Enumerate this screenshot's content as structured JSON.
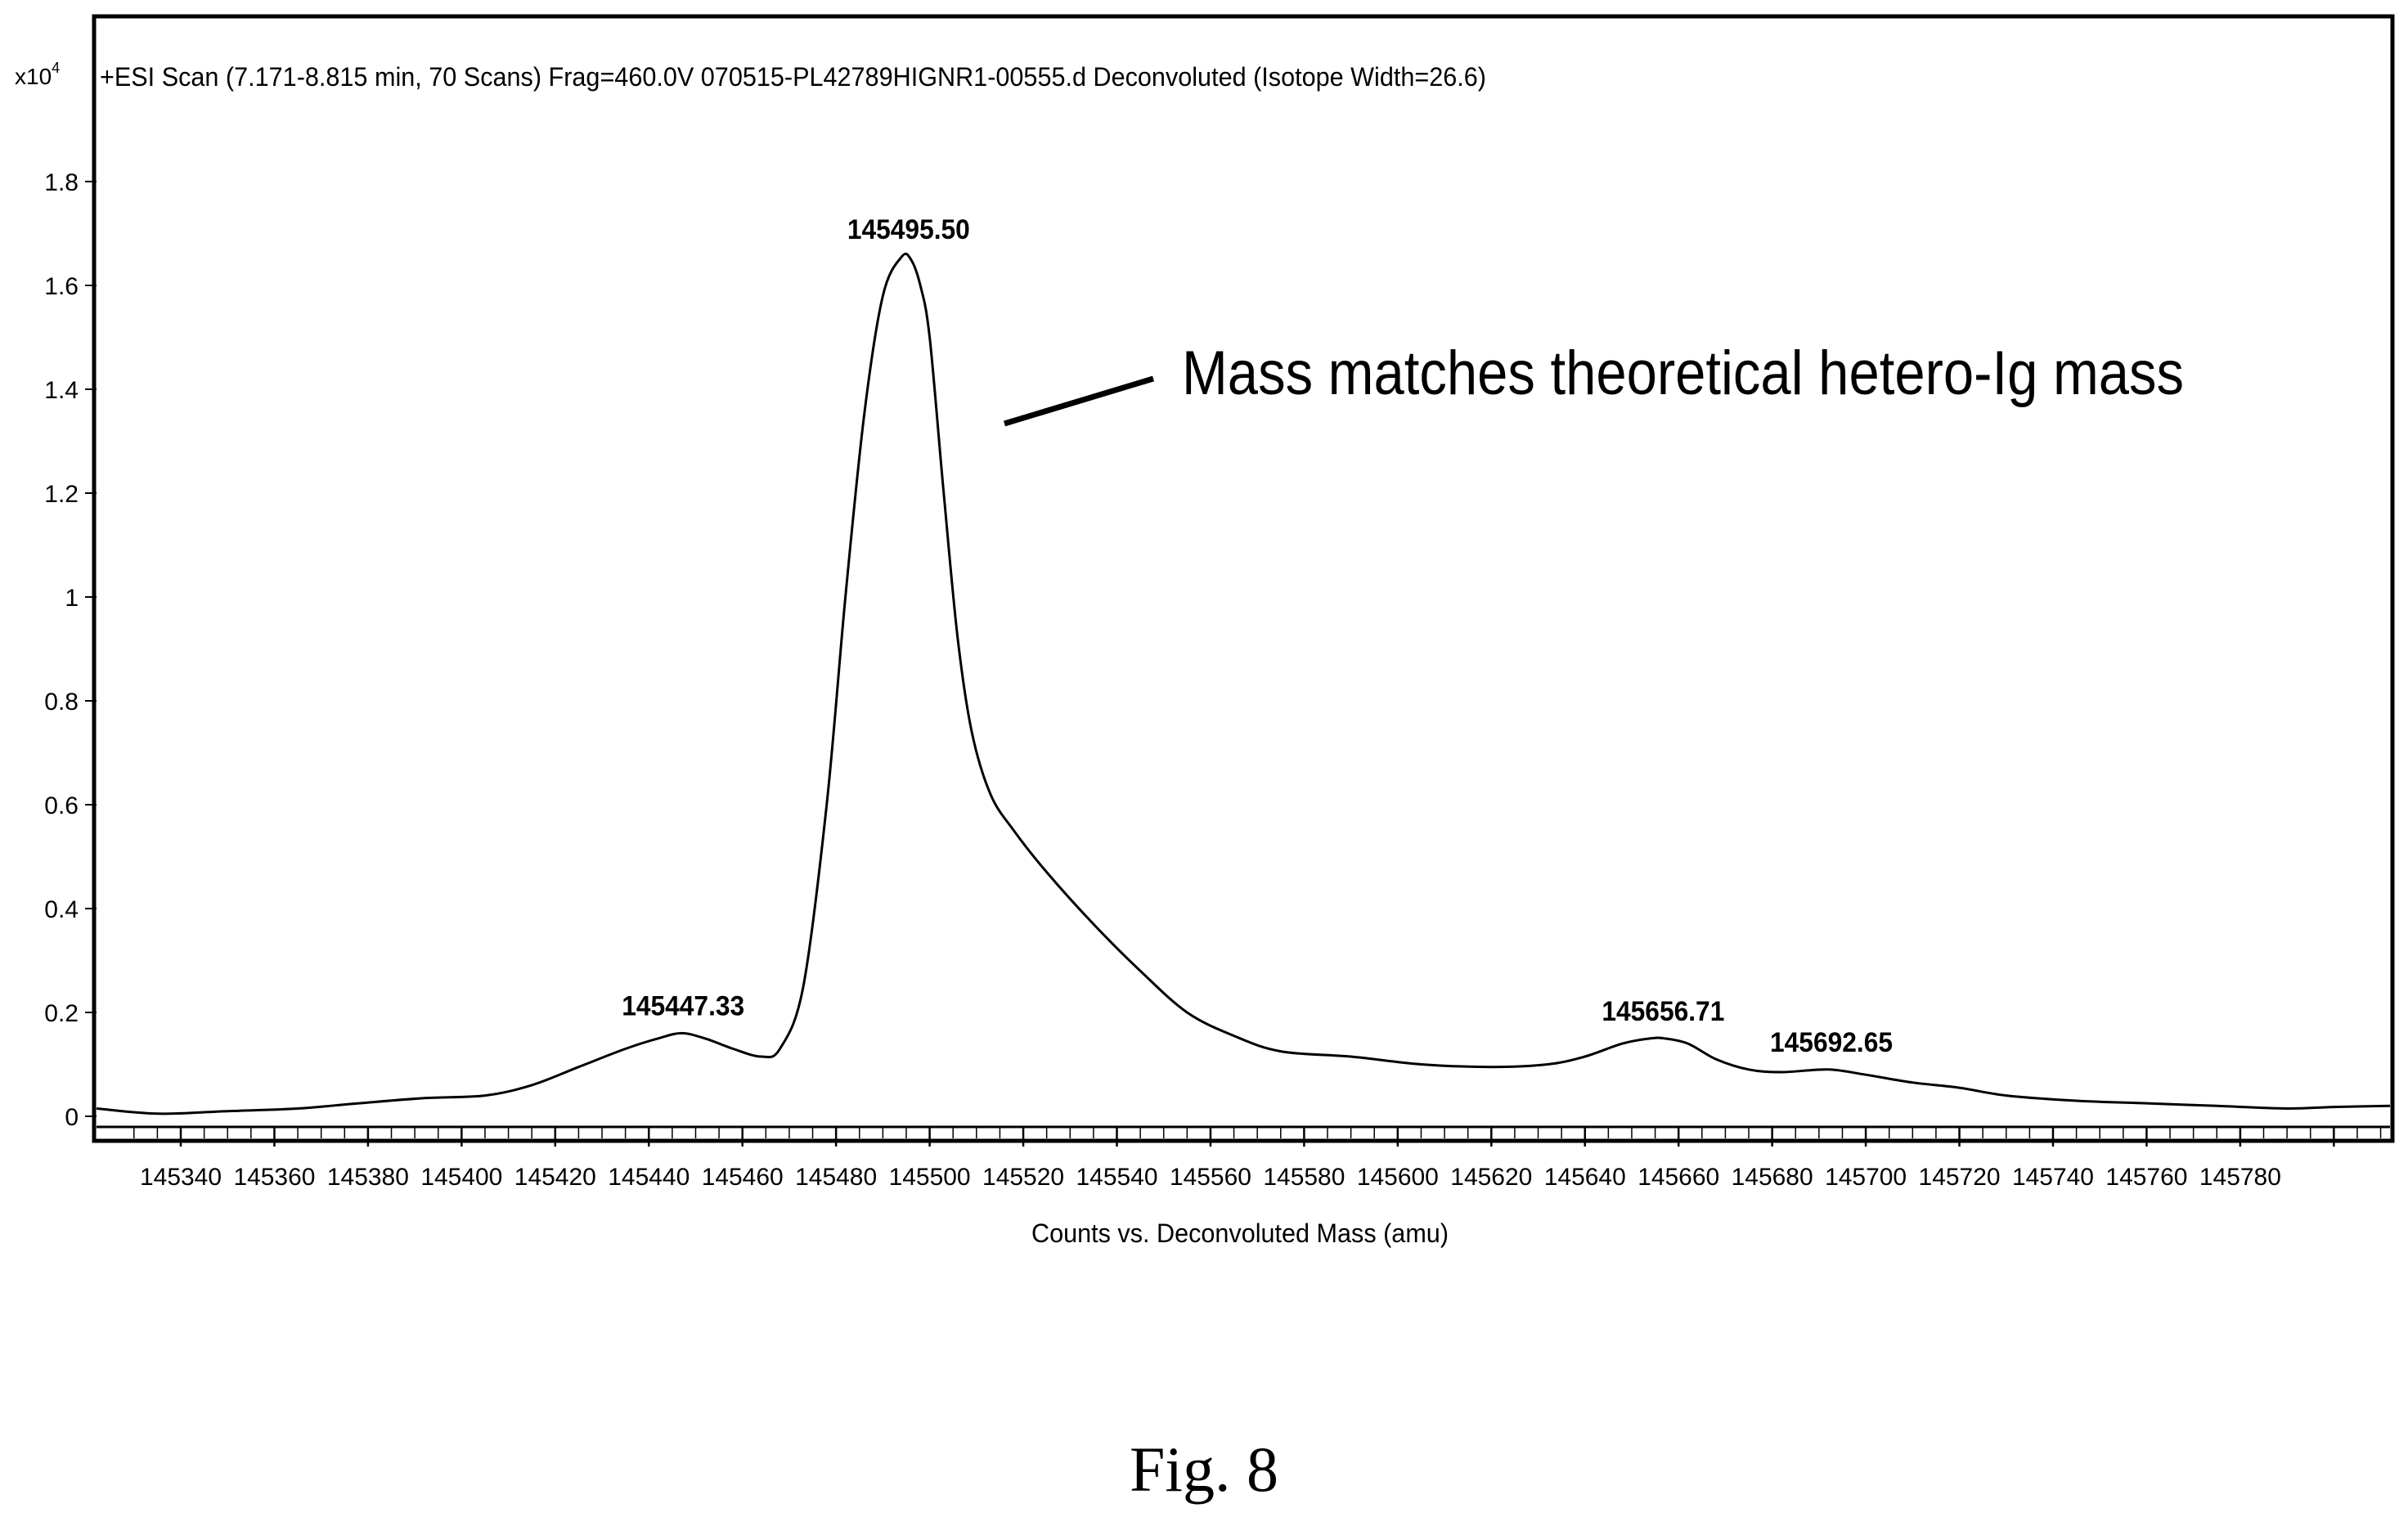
{
  "header": {
    "scale_base": "x10",
    "scale_exp": "4",
    "scan_info": "+ESI Scan (7.171-8.815 min, 70 Scans) Frag=460.0V 070515-PL42789HIGNR1-00555.d  Deconvoluted (Isotope Width=26.6)"
  },
  "annotation": {
    "text": "Mass matches theoretical hetero-Ig mass"
  },
  "caption": "Fig. 8",
  "chart_data": {
    "type": "line",
    "title": "",
    "xlabel": "Counts vs. Deconvoluted Mass (amu)",
    "ylabel": "",
    "y_scale_label": "x10^4",
    "xlim": [
      145322,
      145812
    ],
    "ylim": [
      0,
      2.0
    ],
    "grid": false,
    "x_ticks": [
      145340,
      145360,
      145380,
      145400,
      145420,
      145440,
      145460,
      145480,
      145500,
      145520,
      145540,
      145560,
      145580,
      145600,
      145620,
      145640,
      145660,
      145680,
      145700,
      145720,
      145740,
      145760,
      145780
    ],
    "y_ticks": [
      0,
      0.2,
      0.4,
      0.6,
      0.8,
      1,
      1.2,
      1.4,
      1.6,
      1.8
    ],
    "y_tick_labels": [
      "0",
      "0.2",
      "0.4",
      "0.6",
      "0.8",
      "1",
      "1.2",
      "1.4",
      "1.6",
      "1.8"
    ],
    "series": [
      {
        "x": [
          145322,
          145335,
          145350,
          145365,
          145378,
          145392,
          145405,
          145415,
          145425,
          145435,
          145442,
          145447,
          145452,
          145458,
          145464,
          145468,
          145473,
          145478,
          145482,
          145486,
          145490,
          145494,
          145496,
          145498,
          145500,
          145503,
          145506,
          145509,
          145513,
          145518,
          145525,
          145535,
          145545,
          145555,
          145565,
          145575,
          145590,
          145605,
          145620,
          145632,
          145640,
          145648,
          145654,
          145657,
          145662,
          145668,
          145675,
          145682,
          145692,
          145700,
          145710,
          145720,
          145730,
          145745,
          145760,
          145775,
          145790,
          145800,
          145812
        ],
        "y": [
          0.015,
          0.005,
          0.01,
          0.015,
          0.025,
          0.035,
          0.04,
          0.06,
          0.095,
          0.13,
          0.15,
          0.16,
          0.15,
          0.13,
          0.115,
          0.13,
          0.25,
          0.6,
          1.0,
          1.35,
          1.58,
          1.655,
          1.65,
          1.6,
          1.5,
          1.2,
          0.92,
          0.74,
          0.62,
          0.55,
          0.47,
          0.37,
          0.28,
          0.2,
          0.155,
          0.125,
          0.115,
          0.1,
          0.095,
          0.1,
          0.115,
          0.14,
          0.15,
          0.15,
          0.14,
          0.11,
          0.09,
          0.085,
          0.09,
          0.08,
          0.065,
          0.055,
          0.04,
          0.03,
          0.025,
          0.02,
          0.015,
          0.018,
          0.02
        ]
      }
    ],
    "peaks": [
      {
        "x": 145447.33,
        "y": 0.16,
        "label": "145447.33"
      },
      {
        "x": 145495.5,
        "y": 1.655,
        "label": "145495.50"
      },
      {
        "x": 145656.71,
        "y": 0.15,
        "label": "145656.71"
      },
      {
        "x": 145692.65,
        "y": 0.09,
        "label": "145692.65"
      }
    ]
  }
}
